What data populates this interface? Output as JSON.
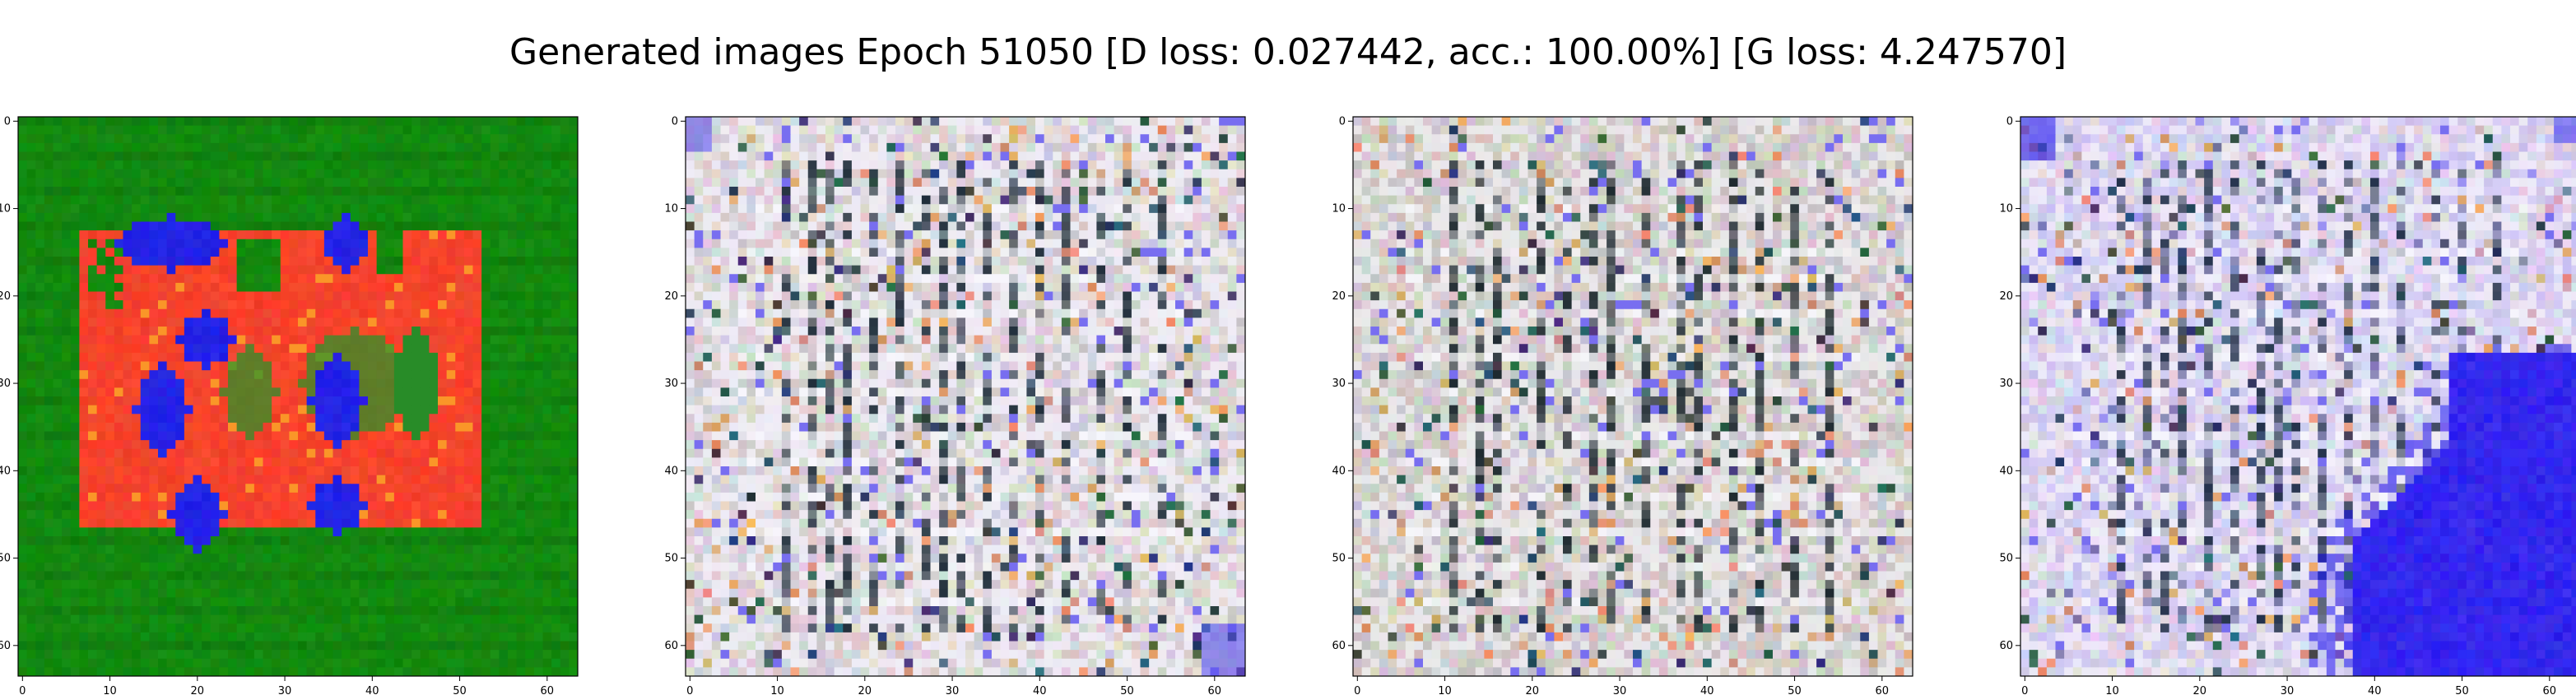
{
  "figure": {
    "title": "Generated images Epoch 51050 [D loss: 0.027442, acc.: 100.00%] [G loss: 4.247570]"
  },
  "axes": {
    "x_ticks": [
      "0",
      "10",
      "20",
      "30",
      "40",
      "50",
      "60"
    ],
    "y_ticks": [
      "0",
      "10",
      "20",
      "30",
      "40",
      "50",
      "60"
    ],
    "range": [
      -0.5,
      63.5
    ]
  },
  "panels": [
    {
      "id": "sample-1",
      "content": "green background with red-orange blob and blue patches",
      "colors": {
        "bg": "#138a0f",
        "main": "#f5432c",
        "accent": "#2323e6"
      }
    },
    {
      "id": "sample-2",
      "content": "pale grey-white noisy grid-like texture",
      "colors": {
        "bg": "#d9d4d6",
        "dark": "#1f2d3a",
        "light": "#f3f0fb"
      }
    },
    {
      "id": "sample-3",
      "content": "pale grey noisy grid-like texture",
      "colors": {
        "bg": "#d1ccca",
        "dark": "#1e2a30",
        "light": "#efeef2"
      }
    },
    {
      "id": "sample-4",
      "content": "lavender-white noisy texture with large blue region bottom-right",
      "colors": {
        "bg": "#dcd6e8",
        "dark": "#22304a",
        "accent": "#2a1ff0"
      }
    }
  ]
}
